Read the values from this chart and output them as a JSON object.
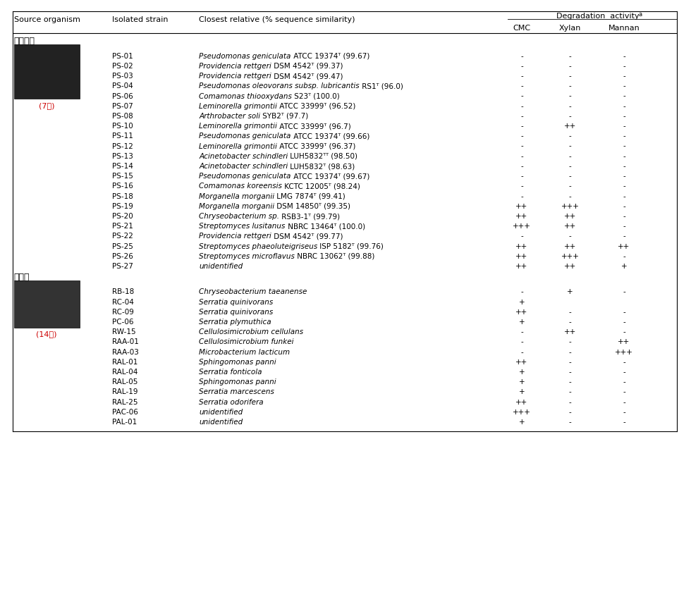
{
  "group1_label": "쁨둥구리",
  "group1_sublabel": "(7종)",
  "group2_label": "하늘소",
  "group2_sublabel": "(14종)",
  "rows": [
    {
      "strain": "PS-01",
      "italic_part": "Pseudomonas geniculata",
      "non_italic": " ATCC 19374ᵀ (99.67)",
      "cmc": "-",
      "xylan": "-",
      "mannan": "-",
      "group": 1
    },
    {
      "strain": "PS-02",
      "italic_part": "Providencia rettgeri",
      "non_italic": " DSM 4542ᵀ (99.37)",
      "cmc": "-",
      "xylan": "-",
      "mannan": "-",
      "group": 1
    },
    {
      "strain": "PS-03",
      "italic_part": "Providencia rettgeri",
      "non_italic": " DSM 4542ᵀ (99.47)",
      "cmc": "-",
      "xylan": "-",
      "mannan": "-",
      "group": 1
    },
    {
      "strain": "PS-04",
      "italic_part": "Pseudomonas oleovorans subsp. lubricantis",
      "non_italic": " RS1ᵀ (96.0)",
      "cmc": "-",
      "xylan": "-",
      "mannan": "-",
      "group": 1
    },
    {
      "strain": "PS-06",
      "italic_part": "Comamonas thiooxydans",
      "non_italic": " S23ᵀ (100.0)",
      "cmc": "-",
      "xylan": "-",
      "mannan": "-",
      "group": 1
    },
    {
      "strain": "PS-07",
      "italic_part": "Leminorella grimontii",
      "non_italic": " ATCC 33999ᵀ (96.52)",
      "cmc": "-",
      "xylan": "-",
      "mannan": "-",
      "group": 1
    },
    {
      "strain": "PS-08",
      "italic_part": "Arthrobacter soli",
      "non_italic": " SYB2ᵀ (97.7)",
      "cmc": "-",
      "xylan": "-",
      "mannan": "-",
      "group": 1
    },
    {
      "strain": "PS-10",
      "italic_part": "Leminorella grimontii",
      "non_italic": " ATCC 33999ᵀ (96.7)",
      "cmc": "-",
      "xylan": "++",
      "mannan": "-",
      "group": 1
    },
    {
      "strain": "PS-11",
      "italic_part": "Pseudomonas geniculata",
      "non_italic": " ATCC 19374ᵀ (99.66)",
      "cmc": "-",
      "xylan": "-",
      "mannan": "-",
      "group": 1
    },
    {
      "strain": "PS-12",
      "italic_part": "Leminorella grimontii",
      "non_italic": " ATCC 33999ᵀ (96.37)",
      "cmc": "-",
      "xylan": "-",
      "mannan": "-",
      "group": 1
    },
    {
      "strain": "PS-13",
      "italic_part": "Acinetobacter schindleri",
      "non_italic": " LUH5832ᵀᵀ (98.50)",
      "cmc": "-",
      "xylan": "-",
      "mannan": "-",
      "group": 1
    },
    {
      "strain": "PS-14",
      "italic_part": "Acinetobacter schindleri",
      "non_italic": " LUH5832ᵀ (98.63)",
      "cmc": "-",
      "xylan": "-",
      "mannan": "-",
      "group": 1
    },
    {
      "strain": "PS-15",
      "italic_part": "Pseudomonas geniculata",
      "non_italic": " ATCC 19374ᵀ (99.67)",
      "cmc": "-",
      "xylan": "-",
      "mannan": "-",
      "group": 1
    },
    {
      "strain": "PS-16",
      "italic_part": "Comamonas koreensis",
      "non_italic": " KCTC 12005ᵀ (98.24)",
      "cmc": "-",
      "xylan": "-",
      "mannan": "-",
      "group": 1
    },
    {
      "strain": "PS-18",
      "italic_part": "Morganella morganii",
      "non_italic": " LMG 7874ᵀ (99.41)",
      "cmc": "-",
      "xylan": "-",
      "mannan": "-",
      "group": 1
    },
    {
      "strain": "PS-19",
      "italic_part": "Morganella morganii",
      "non_italic": " DSM 14850ᵀ (99.35)",
      "cmc": "++",
      "xylan": "+++",
      "mannan": "-",
      "group": 1
    },
    {
      "strain": "PS-20",
      "italic_part": "Chryseobacterium sp.",
      "non_italic": " RSB3-1ᵀ (99.79)",
      "cmc": "++",
      "xylan": "++",
      "mannan": "-",
      "group": 1
    },
    {
      "strain": "PS-21",
      "italic_part": "Streptomyces lusitanus",
      "non_italic": " NBRC 13464ᵀ (100.0)",
      "cmc": "+++",
      "xylan": "++",
      "mannan": "-",
      "group": 1
    },
    {
      "strain": "PS-22",
      "italic_part": "Providencia rettgeri",
      "non_italic": " DSM 4542ᵀ (99.77)",
      "cmc": "-",
      "xylan": "-",
      "mannan": "-",
      "group": 1
    },
    {
      "strain": "PS-25",
      "italic_part": "Streptomyces phaeoluteigriseus",
      "non_italic": " ISP 5182ᵀ (99.76)",
      "cmc": "++",
      "xylan": "++",
      "mannan": "++",
      "group": 1
    },
    {
      "strain": "PS-26",
      "italic_part": "Streptomyces microflavus",
      "non_italic": " NBRC 13062ᵀ (99.88)",
      "cmc": "++",
      "xylan": "+++",
      "mannan": "-",
      "group": 1
    },
    {
      "strain": "PS-27",
      "italic_part": "unidentified",
      "non_italic": "",
      "cmc": "++",
      "xylan": "++",
      "mannan": "+",
      "group": 1
    },
    {
      "strain": "RB-18",
      "italic_part": "Chryseobacterium taeanense",
      "non_italic": "",
      "cmc": "-",
      "xylan": "+",
      "mannan": "-",
      "group": 2
    },
    {
      "strain": "RC-04",
      "italic_part": "Serratia quinivorans",
      "non_italic": "",
      "cmc": "+",
      "xylan": "",
      "mannan": "",
      "group": 2
    },
    {
      "strain": "RC-09",
      "italic_part": "Serratia quinivorans",
      "non_italic": "",
      "cmc": "++",
      "xylan": "-",
      "mannan": "-",
      "group": 2
    },
    {
      "strain": "PC-06",
      "italic_part": "Serratia plymuthica",
      "non_italic": "",
      "cmc": "+",
      "xylan": "-",
      "mannan": "-",
      "group": 2
    },
    {
      "strain": "RW-15",
      "italic_part": "Cellulosimicrobium cellulans",
      "non_italic": "",
      "cmc": "-",
      "xylan": "++",
      "mannan": "-",
      "group": 2
    },
    {
      "strain": "RAA-01",
      "italic_part": "Cellulosimicrobium funkei",
      "non_italic": "",
      "cmc": "-",
      "xylan": "-",
      "mannan": "++",
      "group": 2
    },
    {
      "strain": "RAA-03",
      "italic_part": "Microbacterium lacticum",
      "non_italic": "",
      "cmc": "-",
      "xylan": "-",
      "mannan": "+++",
      "group": 2
    },
    {
      "strain": "RAL-01",
      "italic_part": "Sphingomonas panni",
      "non_italic": "",
      "cmc": "++",
      "xylan": "-",
      "mannan": "-",
      "group": 2
    },
    {
      "strain": "RAL-04",
      "italic_part": "Serratia fonticola",
      "non_italic": "",
      "cmc": "+",
      "xylan": "-",
      "mannan": "-",
      "group": 2
    },
    {
      "strain": "RAL-05",
      "italic_part": "Sphingomonas panni",
      "non_italic": "",
      "cmc": "+",
      "xylan": "-",
      "mannan": "-",
      "group": 2
    },
    {
      "strain": "RAL-19",
      "italic_part": "Serratia marcescens",
      "non_italic": "",
      "cmc": "+",
      "xylan": "-",
      "mannan": "-",
      "group": 2
    },
    {
      "strain": "RAL-25",
      "italic_part": "Serratia odorifera",
      "non_italic": "",
      "cmc": "++",
      "xylan": "-",
      "mannan": "-",
      "group": 2
    },
    {
      "strain": "PAC-06",
      "italic_part": "unidentified",
      "non_italic": "",
      "cmc": "+++",
      "xylan": "-",
      "mannan": "-",
      "group": 2
    },
    {
      "strain": "PAL-01",
      "italic_part": "unidentified",
      "non_italic": "",
      "cmc": "+",
      "xylan": "-",
      "mannan": "-",
      "group": 2
    }
  ]
}
